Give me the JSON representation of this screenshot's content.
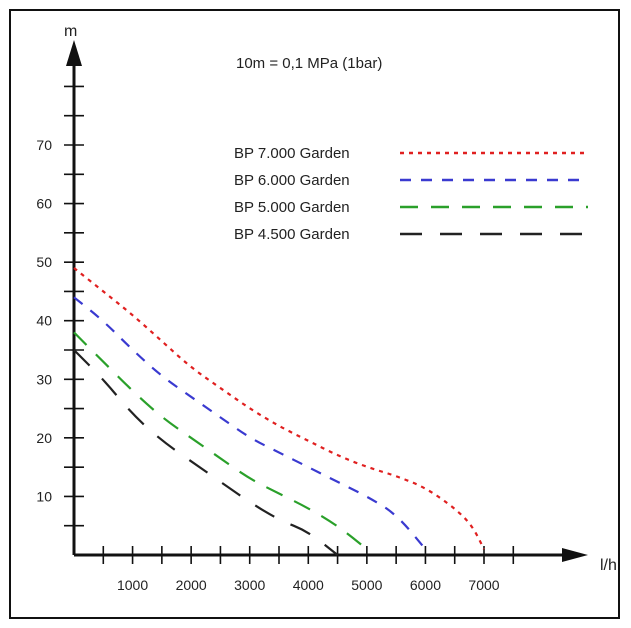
{
  "chart_data": {
    "type": "line",
    "note": "10m = 0,1 MPa (1bar)",
    "xlabel": "l/h",
    "ylabel": "m",
    "xlim": [
      0,
      7500
    ],
    "ylim": [
      0,
      80
    ],
    "x_ticks": [
      1000,
      2000,
      3000,
      4000,
      5000,
      6000,
      7000
    ],
    "x_tick_labels": [
      "1000",
      "2000",
      "3000",
      "4000",
      "5000",
      "6000",
      "7000"
    ],
    "y_ticks": [
      10,
      20,
      30,
      40,
      50,
      60,
      70
    ],
    "y_tick_labels": [
      "10",
      "20",
      "30",
      "40",
      "50",
      "60",
      "70"
    ],
    "legend_position": "upper-right",
    "grid": false,
    "series": [
      {
        "name": "BP 7.000 Garden",
        "color": "#e02020",
        "dash": "dotted",
        "x": [
          0,
          500,
          1000,
          1500,
          2000,
          2500,
          3000,
          3500,
          4000,
          4500,
          5000,
          5500,
          6000,
          6500,
          6800,
          7000
        ],
        "y": [
          49,
          45,
          41,
          36.5,
          32,
          28.5,
          25,
          22,
          19.5,
          17,
          15,
          13.5,
          11.5,
          8,
          5,
          1
        ]
      },
      {
        "name": "BP 6.000 Garden",
        "color": "#3a3ad0",
        "dash": "dashed-short",
        "x": [
          0,
          500,
          1000,
          1500,
          2000,
          2500,
          3000,
          3500,
          4000,
          4500,
          5000,
          5500,
          6000
        ],
        "y": [
          44,
          40,
          35,
          30.5,
          27,
          23.5,
          20,
          17.5,
          15,
          12.5,
          10,
          7,
          1
        ]
      },
      {
        "name": "BP 5.000 Garden",
        "color": "#2aa02a",
        "dash": "dashed-medium",
        "x": [
          0,
          500,
          1000,
          1500,
          2000,
          2500,
          3000,
          3500,
          4000,
          4500,
          5000
        ],
        "y": [
          38,
          33,
          28,
          23.5,
          20,
          16.5,
          13,
          10.5,
          8,
          5,
          1
        ]
      },
      {
        "name": "BP 4.500 Garden",
        "color": "#222222",
        "dash": "dashed-long",
        "x": [
          0,
          500,
          1000,
          1500,
          2000,
          2500,
          3000,
          3500,
          4000,
          4500
        ],
        "y": [
          35,
          30,
          24,
          19.5,
          16,
          12.5,
          9,
          6,
          4,
          0
        ]
      }
    ]
  }
}
